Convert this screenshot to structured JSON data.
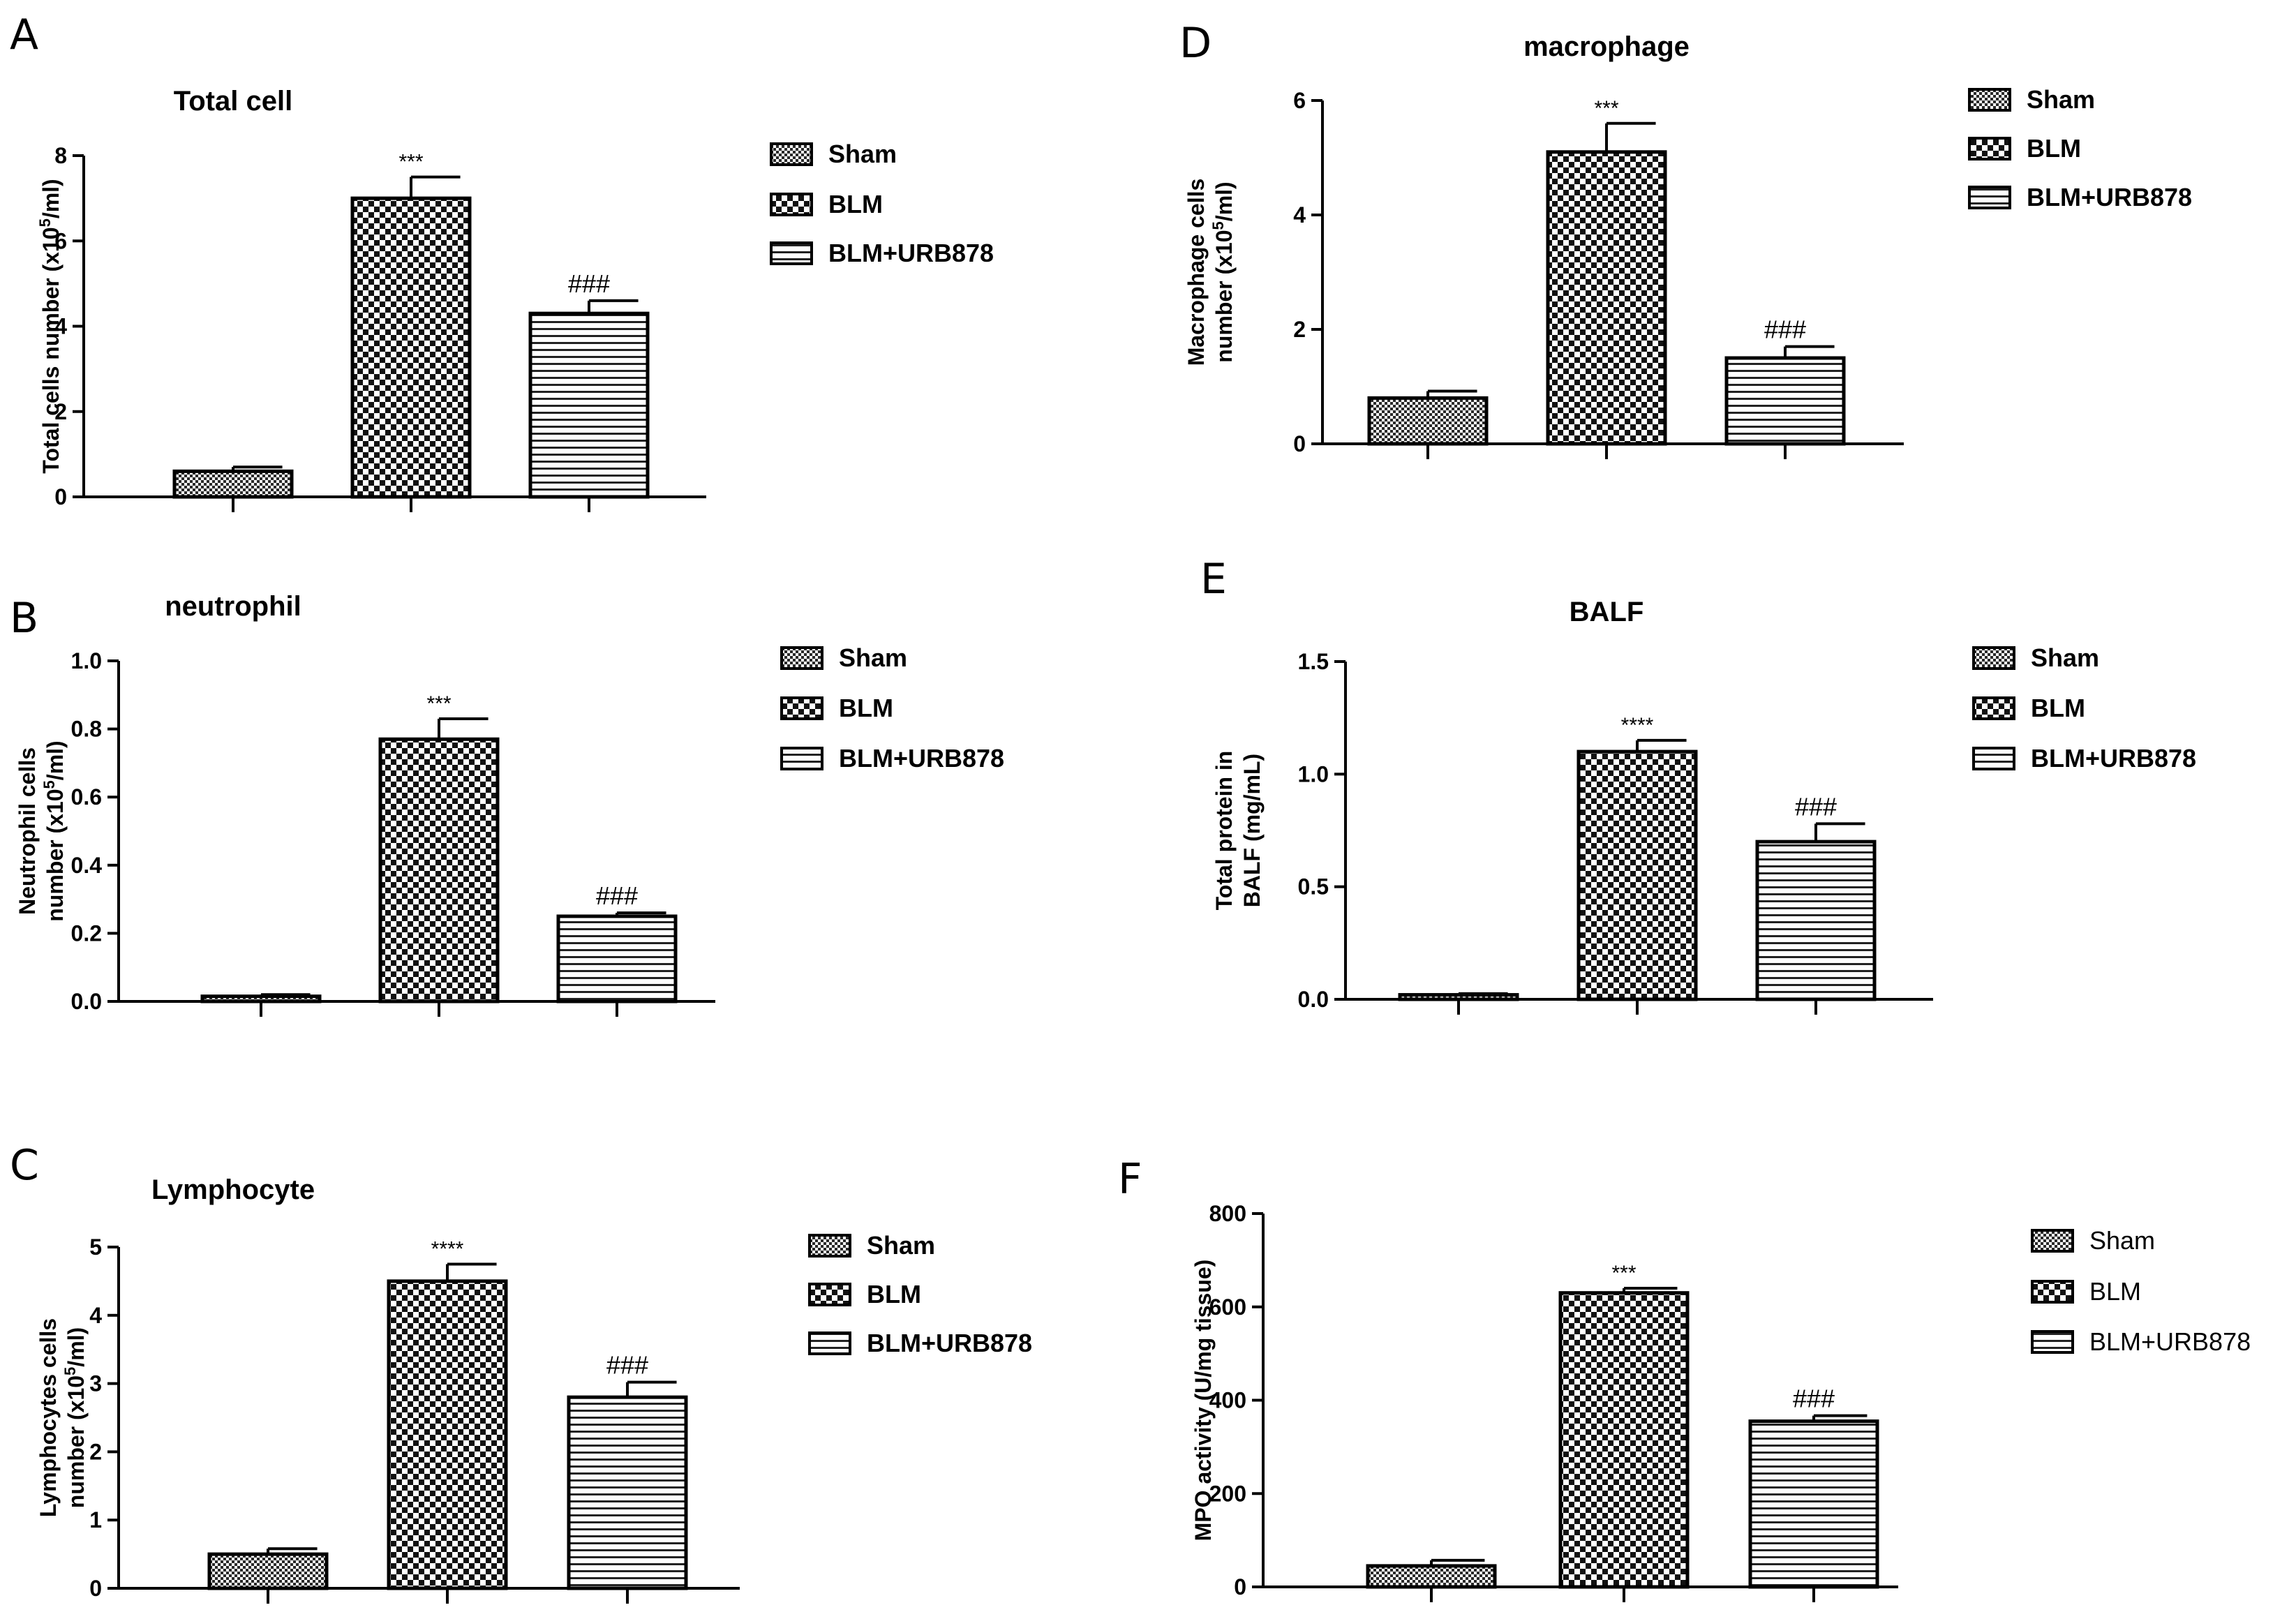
{
  "colors": {
    "ink": "#000000",
    "background": "#ffffff",
    "bar_base": "#ffffff"
  },
  "chart_data": [
    {
      "type": "bar",
      "panel": "A",
      "title": "Total cell",
      "ylabel": [
        "Total cells number (x10",
        "5",
        "/ml)"
      ],
      "categories": [
        "Sham",
        "BLM",
        "BLM+URB878"
      ],
      "values": [
        0.6,
        7.0,
        4.3
      ],
      "errors": [
        0.1,
        0.5,
        0.3
      ],
      "annotations": [
        "",
        "***",
        "###"
      ],
      "ylim": [
        0,
        8
      ],
      "yticks": [
        0,
        2,
        4,
        6,
        8
      ],
      "legend": [
        "Sham",
        "BLM",
        "BLM+URB878"
      ],
      "legend_bold": true
    },
    {
      "type": "bar",
      "panel": "B",
      "title": "neutrophil",
      "ylabel": [
        "Neutrophil cells",
        "number (x10",
        "5",
        "/ml)"
      ],
      "categories": [
        "Sham",
        "BLM",
        "BLM+URB878"
      ],
      "values": [
        0.015,
        0.77,
        0.25
      ],
      "errors": [
        0.005,
        0.06,
        0.01
      ],
      "annotations": [
        "",
        "***",
        "###"
      ],
      "ylim": [
        0,
        1.0
      ],
      "yticks": [
        "0.0",
        "0.2",
        "0.4",
        "0.6",
        "0.8",
        "1.0"
      ],
      "legend": [
        "Sham",
        "BLM",
        "BLM+URB878"
      ],
      "legend_bold": true
    },
    {
      "type": "bar",
      "panel": "C",
      "title": "Lymphocyte",
      "ylabel": [
        "Lymphocytes  cells",
        "number (x10",
        "5",
        "/ml)"
      ],
      "categories": [
        "Sham",
        "BLM",
        "BLM+URB878"
      ],
      "values": [
        0.5,
        4.5,
        2.8
      ],
      "errors": [
        0.08,
        0.25,
        0.22
      ],
      "annotations": [
        "",
        "****",
        "###"
      ],
      "ylim": [
        0,
        5
      ],
      "yticks": [
        0,
        1,
        2,
        3,
        4,
        5
      ],
      "legend": [
        "Sham",
        "BLM",
        "BLM+URB878"
      ],
      "legend_bold": true
    },
    {
      "type": "bar",
      "panel": "D",
      "title": "macrophage",
      "ylabel": [
        "Macrophage  cells",
        "number (x10",
        "5",
        "/ml)"
      ],
      "categories": [
        "Sham",
        "BLM",
        "BLM+URB878"
      ],
      "values": [
        0.8,
        5.1,
        1.5
      ],
      "errors": [
        0.12,
        0.5,
        0.2
      ],
      "annotations": [
        "",
        "***",
        "###"
      ],
      "ylim": [
        0,
        6
      ],
      "yticks": [
        0,
        2,
        4,
        6
      ],
      "legend": [
        "Sham",
        "BLM",
        "BLM+URB878"
      ],
      "legend_bold": true
    },
    {
      "type": "bar",
      "panel": "E",
      "title": "BALF",
      "ylabel": [
        "Total protein in",
        "BALF (mg/mL)"
      ],
      "categories": [
        "Sham",
        "BLM",
        "BLM+URB878"
      ],
      "values": [
        0.02,
        1.1,
        0.7
      ],
      "errors": [
        0.005,
        0.05,
        0.08
      ],
      "annotations": [
        "",
        "****",
        "###"
      ],
      "ylim": [
        0,
        1.5
      ],
      "yticks": [
        "0.0",
        "0.5",
        "1.0",
        "1.5"
      ],
      "legend": [
        "Sham",
        "BLM",
        "BLM+URB878"
      ],
      "legend_bold": true
    },
    {
      "type": "bar",
      "panel": "F",
      "title": "",
      "ylabel": [
        "MPO activity (U/mg tissue)"
      ],
      "categories": [
        "Sham",
        "BLM",
        "BLM+URB878"
      ],
      "values": [
        45,
        630,
        355
      ],
      "errors": [
        12,
        10,
        12
      ],
      "annotations": [
        "",
        "***",
        "###"
      ],
      "ylim": [
        0,
        800
      ],
      "yticks": [
        0,
        200,
        400,
        600,
        800
      ],
      "legend": [
        "Sham",
        "BLM",
        "BLM+URB878"
      ],
      "legend_bold": false
    }
  ]
}
